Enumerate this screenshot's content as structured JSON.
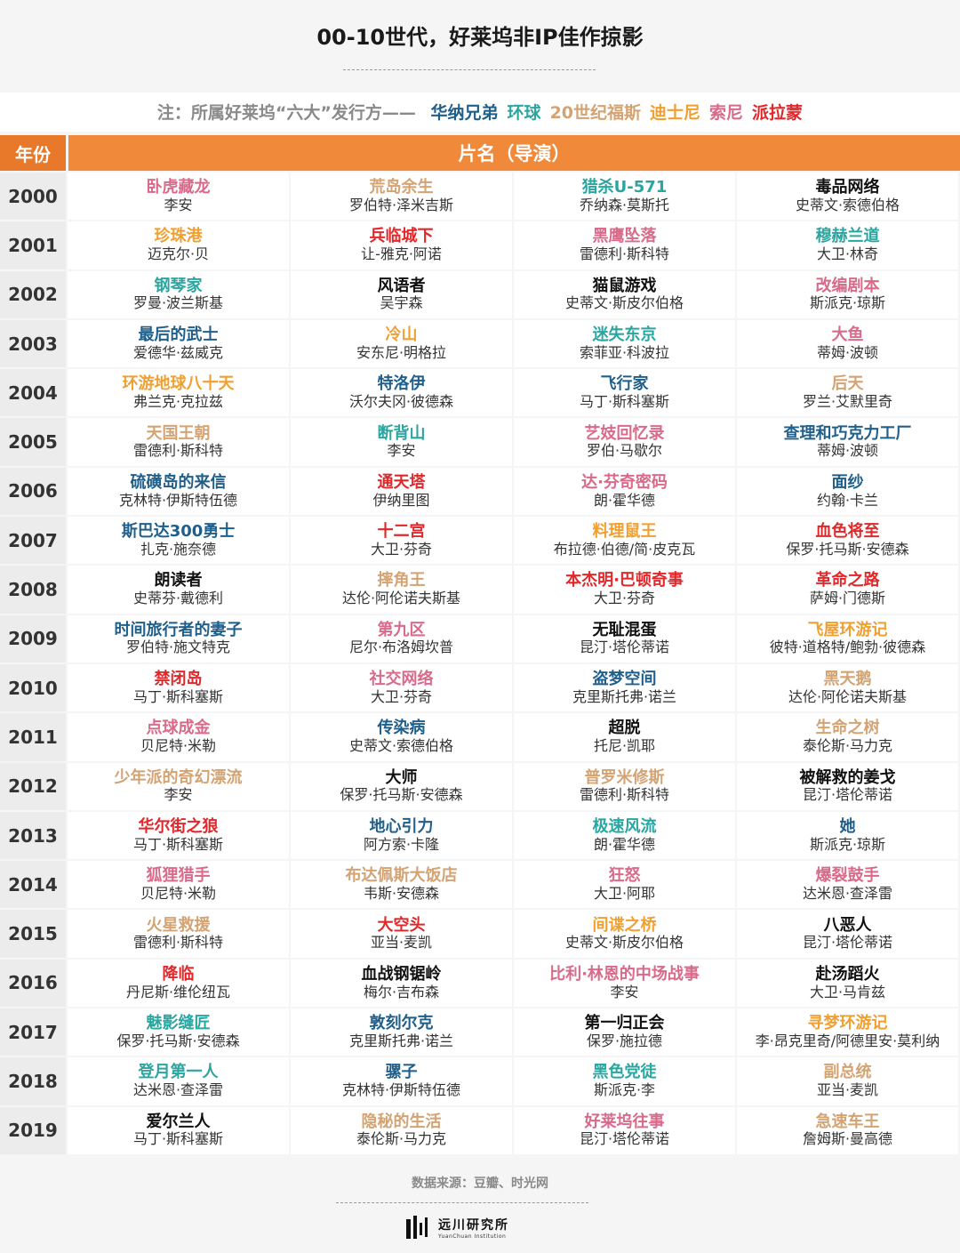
{
  "title": "00-10世代，好莱坞非IP佳作掠影",
  "note": {
    "prefix": "注：所属好莱坞“六大”发行方——",
    "studios": [
      {
        "name": "华纳兄弟",
        "color": "#1f5f8b"
      },
      {
        "name": "环球",
        "color": "#2aa6a0"
      },
      {
        "name": "20世纪福斯",
        "color": "#d4a373"
      },
      {
        "name": "迪士尼",
        "color": "#f0a030"
      },
      {
        "name": "索尼",
        "color": "#d96a8a"
      },
      {
        "name": "派拉蒙",
        "color": "#e0282b"
      }
    ]
  },
  "header": {
    "year": "年份",
    "films": "片名（导演）"
  },
  "colors": {
    "warner": "#1f5f8b",
    "universal": "#2aa6a0",
    "fox": "#d4a373",
    "disney": "#f0a030",
    "sony": "#d96a8a",
    "paramount": "#e0282b",
    "other": "#111111"
  },
  "rows": [
    {
      "year": "2000",
      "films": [
        {
          "title": "卧虎藏龙",
          "director": "李安",
          "studio": "sony"
        },
        {
          "title": "荒岛余生",
          "director": "罗伯特·泽米吉斯",
          "studio": "fox"
        },
        {
          "title": "猎杀U-571",
          "director": "乔纳森·莫斯托",
          "studio": "universal"
        },
        {
          "title": "毒品网络",
          "director": "史蒂文·索德伯格",
          "studio": "other"
        }
      ]
    },
    {
      "year": "2001",
      "films": [
        {
          "title": "珍珠港",
          "director": "迈克尔·贝",
          "studio": "disney"
        },
        {
          "title": "兵临城下",
          "director": "让-雅克·阿诺",
          "studio": "paramount"
        },
        {
          "title": "黑鹰坠落",
          "director": "雷德利·斯科特",
          "studio": "sony"
        },
        {
          "title": "穆赫兰道",
          "director": "大卫·林奇",
          "studio": "universal"
        }
      ]
    },
    {
      "year": "2002",
      "films": [
        {
          "title": "钢琴家",
          "director": "罗曼·波兰斯基",
          "studio": "universal"
        },
        {
          "title": "风语者",
          "director": "吴宇森",
          "studio": "other"
        },
        {
          "title": "猫鼠游戏",
          "director": "史蒂文·斯皮尔伯格",
          "studio": "other"
        },
        {
          "title": "改编剧本",
          "director": "斯派克·琼斯",
          "studio": "sony"
        }
      ]
    },
    {
      "year": "2003",
      "films": [
        {
          "title": "最后的武士",
          "director": "爱德华·兹威克",
          "studio": "warner"
        },
        {
          "title": "冷山",
          "director": "安东尼·明格拉",
          "studio": "disney"
        },
        {
          "title": "迷失东京",
          "director": "索菲亚·科波拉",
          "studio": "universal"
        },
        {
          "title": "大鱼",
          "director": "蒂姆·波顿",
          "studio": "sony"
        }
      ]
    },
    {
      "year": "2004",
      "films": [
        {
          "title": "环游地球八十天",
          "director": "弗兰克·克拉兹",
          "studio": "disney"
        },
        {
          "title": "特洛伊",
          "director": "沃尔夫冈·彼德森",
          "studio": "warner"
        },
        {
          "title": "飞行家",
          "director": "马丁·斯科塞斯",
          "studio": "warner"
        },
        {
          "title": "后天",
          "director": "罗兰·艾默里奇",
          "studio": "fox"
        }
      ]
    },
    {
      "year": "2005",
      "films": [
        {
          "title": "天国王朝",
          "director": "雷德利·斯科特",
          "studio": "fox"
        },
        {
          "title": "断背山",
          "director": "李安",
          "studio": "universal"
        },
        {
          "title": "艺妓回忆录",
          "director": "罗伯·马歇尔",
          "studio": "sony"
        },
        {
          "title": "查理和巧克力工厂",
          "director": "蒂姆·波顿",
          "studio": "warner"
        }
      ]
    },
    {
      "year": "2006",
      "films": [
        {
          "title": "硫磺岛的来信",
          "director": "克林特·伊斯特伍德",
          "studio": "warner"
        },
        {
          "title": "通天塔",
          "director": "伊纳里图",
          "studio": "paramount"
        },
        {
          "title": "达·芬奇密码",
          "director": "朗·霍华德",
          "studio": "sony"
        },
        {
          "title": "面纱",
          "director": "约翰·卡兰",
          "studio": "warner"
        }
      ]
    },
    {
      "year": "2007",
      "films": [
        {
          "title": "斯巴达300勇士",
          "director": "扎克·施奈德",
          "studio": "warner"
        },
        {
          "title": "十二宫",
          "director": "大卫·芬奇",
          "studio": "paramount"
        },
        {
          "title": "料理鼠王",
          "director": "布拉德·伯德/简·皮克瓦",
          "studio": "disney"
        },
        {
          "title": "血色将至",
          "director": "保罗·托马斯·安德森",
          "studio": "paramount"
        }
      ]
    },
    {
      "year": "2008",
      "films": [
        {
          "title": "朗读者",
          "director": "史蒂芬·戴德利",
          "studio": "other"
        },
        {
          "title": "摔角王",
          "director": "达伦·阿伦诺夫斯基",
          "studio": "fox"
        },
        {
          "title": "本杰明·巴顿奇事",
          "director": "大卫·芬奇",
          "studio": "paramount"
        },
        {
          "title": "革命之路",
          "director": "萨姆·门德斯",
          "studio": "paramount"
        }
      ]
    },
    {
      "year": "2009",
      "films": [
        {
          "title": "时间旅行者的妻子",
          "director": "罗伯特·施文特克",
          "studio": "warner"
        },
        {
          "title": "第九区",
          "director": "尼尔·布洛姆坎普",
          "studio": "sony"
        },
        {
          "title": "无耻混蛋",
          "director": "昆汀·塔伦蒂诺",
          "studio": "other"
        },
        {
          "title": "飞屋环游记",
          "director": "彼特·道格特/鲍勃·彼德森",
          "studio": "disney"
        }
      ]
    },
    {
      "year": "2010",
      "films": [
        {
          "title": "禁闭岛",
          "director": "马丁·斯科塞斯",
          "studio": "paramount"
        },
        {
          "title": "社交网络",
          "director": "大卫·芬奇",
          "studio": "sony"
        },
        {
          "title": "盗梦空间",
          "director": "克里斯托弗·诺兰",
          "studio": "warner"
        },
        {
          "title": "黑天鹅",
          "director": "达伦·阿伦诺夫斯基",
          "studio": "fox"
        }
      ]
    },
    {
      "year": "2011",
      "films": [
        {
          "title": "点球成金",
          "director": "贝尼特·米勒",
          "studio": "sony"
        },
        {
          "title": "传染病",
          "director": "史蒂文·索德伯格",
          "studio": "warner"
        },
        {
          "title": "超脱",
          "director": "托尼·凯耶",
          "studio": "other"
        },
        {
          "title": "生命之树",
          "director": "泰伦斯·马力克",
          "studio": "fox"
        }
      ]
    },
    {
      "year": "2012",
      "films": [
        {
          "title": "少年派的奇幻漂流",
          "director": "李安",
          "studio": "fox"
        },
        {
          "title": "大师",
          "director": "保罗·托马斯·安德森",
          "studio": "other"
        },
        {
          "title": "普罗米修斯",
          "director": "雷德利·斯科特",
          "studio": "fox"
        },
        {
          "title": "被解救的姜戈",
          "director": "昆汀·塔伦蒂诺",
          "studio": "other"
        }
      ]
    },
    {
      "year": "2013",
      "films": [
        {
          "title": "华尔街之狼",
          "director": "马丁·斯科塞斯",
          "studio": "paramount"
        },
        {
          "title": "地心引力",
          "director": "阿方索·卡隆",
          "studio": "warner"
        },
        {
          "title": "极速风流",
          "director": "朗·霍华德",
          "studio": "universal"
        },
        {
          "title": "她",
          "director": "斯派克·琼斯",
          "studio": "warner"
        }
      ]
    },
    {
      "year": "2014",
      "films": [
        {
          "title": "狐狸猎手",
          "director": "贝尼特·米勒",
          "studio": "sony"
        },
        {
          "title": "布达佩斯大饭店",
          "director": "韦斯·安德森",
          "studio": "fox"
        },
        {
          "title": "狂怒",
          "director": "大卫·阿耶",
          "studio": "sony"
        },
        {
          "title": "爆裂鼓手",
          "director": "达米恩·查泽雷",
          "studio": "sony"
        }
      ]
    },
    {
      "year": "2015",
      "films": [
        {
          "title": "火星救援",
          "director": "雷德利·斯科特",
          "studio": "fox"
        },
        {
          "title": "大空头",
          "director": "亚当·麦凯",
          "studio": "paramount"
        },
        {
          "title": "间谍之桥",
          "director": "史蒂文·斯皮尔伯格",
          "studio": "disney"
        },
        {
          "title": "八恶人",
          "director": "昆汀·塔伦蒂诺",
          "studio": "other"
        }
      ]
    },
    {
      "year": "2016",
      "films": [
        {
          "title": "降临",
          "director": "丹尼斯·维伦纽瓦",
          "studio": "paramount"
        },
        {
          "title": "血战钢锯岭",
          "director": "梅尔·吉布森",
          "studio": "other"
        },
        {
          "title": "比利·林恩的中场战事",
          "director": "李安",
          "studio": "sony"
        },
        {
          "title": "赴汤蹈火",
          "director": "大卫·马肯兹",
          "studio": "other"
        }
      ]
    },
    {
      "year": "2017",
      "films": [
        {
          "title": "魅影缝匠",
          "director": "保罗·托马斯·安德森",
          "studio": "universal"
        },
        {
          "title": "敦刻尔克",
          "director": "克里斯托弗·诺兰",
          "studio": "warner"
        },
        {
          "title": "第一归正会",
          "director": "保罗·施拉德",
          "studio": "other"
        },
        {
          "title": "寻梦环游记",
          "director": "李·昂克里奇/阿德里安·莫利纳",
          "studio": "disney"
        }
      ]
    },
    {
      "year": "2018",
      "films": [
        {
          "title": "登月第一人",
          "director": "达米恩·查泽雷",
          "studio": "universal"
        },
        {
          "title": "骡子",
          "director": "克林特·伊斯特伍德",
          "studio": "warner"
        },
        {
          "title": "黑色党徒",
          "director": "斯派克·李",
          "studio": "universal"
        },
        {
          "title": "副总统",
          "director": "亚当·麦凯",
          "studio": "fox"
        }
      ]
    },
    {
      "year": "2019",
      "films": [
        {
          "title": "爱尔兰人",
          "director": "马丁·斯科塞斯",
          "studio": "other"
        },
        {
          "title": "隐秘的生活",
          "director": "泰伦斯·马力克",
          "studio": "fox"
        },
        {
          "title": "好莱坞往事",
          "director": "昆汀·塔伦蒂诺",
          "studio": "sony"
        },
        {
          "title": "急速车王",
          "director": "詹姆斯·曼高德",
          "studio": "fox"
        }
      ]
    }
  ],
  "source": "数据来源：豆瓣、时光网",
  "logo": {
    "cn": "远川研究所",
    "en": "YuanChuan Institution"
  }
}
